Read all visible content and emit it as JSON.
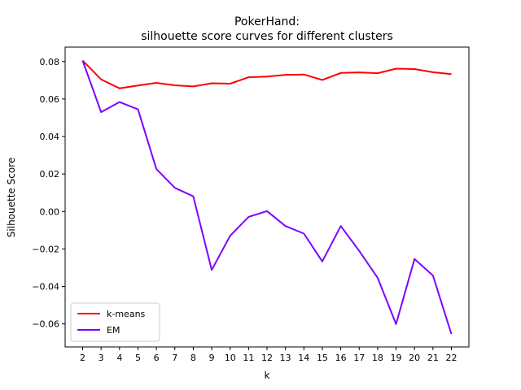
{
  "chart_data": {
    "type": "line",
    "title": "PokerHand:",
    "subtitle": "silhouette score curves for different clusters",
    "xlabel": "k",
    "ylabel": "Silhouette Score",
    "x": [
      2,
      3,
      4,
      5,
      6,
      7,
      8,
      9,
      10,
      11,
      12,
      13,
      14,
      15,
      16,
      17,
      18,
      19,
      20,
      21,
      22
    ],
    "xlim": [
      1.05,
      22.95
    ],
    "ylim": [
      -0.0723,
      0.0877
    ],
    "yticks": [
      0.08,
      0.06,
      0.04,
      0.02,
      0.0,
      -0.02,
      -0.04,
      -0.06
    ],
    "ytick_labels": [
      "0.08",
      "0.06",
      "0.04",
      "0.02",
      "0.00",
      "−0.02",
      "−0.04",
      "−0.06"
    ],
    "grid": false,
    "legend_position": "lower-left",
    "series": [
      {
        "name": "k-means",
        "color": "#ff0000",
        "values": [
          0.0805,
          0.0705,
          0.0657,
          0.0672,
          0.0686,
          0.0673,
          0.0667,
          0.0684,
          0.0682,
          0.0716,
          0.072,
          0.0729,
          0.0731,
          0.0702,
          0.0739,
          0.0742,
          0.0738,
          0.0762,
          0.076,
          0.0743,
          0.0733
        ]
      },
      {
        "name": "EM",
        "color": "#7f00ff",
        "values": [
          0.0805,
          0.053,
          0.0584,
          0.0545,
          0.0226,
          0.0126,
          0.0081,
          -0.0312,
          -0.013,
          -0.0029,
          0.0002,
          -0.0078,
          -0.0118,
          -0.0267,
          -0.0078,
          -0.021,
          -0.0354,
          -0.0601,
          -0.0254,
          -0.0342,
          -0.0654
        ]
      }
    ]
  }
}
